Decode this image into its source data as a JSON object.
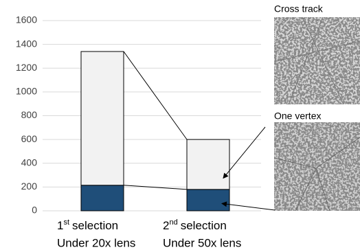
{
  "chart_data": {
    "type": "stacked_bar",
    "categories": [
      [
        "1",
        "st",
        "selection",
        "Under 20x lens"
      ],
      [
        "2",
        "nd",
        "selection",
        "Under 50x lens"
      ]
    ],
    "series": [
      {
        "color": "#1f4e79",
        "values": [
          215,
          180
        ]
      },
      {
        "color": "#f2f2f2",
        "values": [
          1125,
          420
        ]
      }
    ],
    "ylim": [
      0,
      1600
    ],
    "yticks": [
      0,
      200,
      400,
      600,
      800,
      1000,
      1200,
      1400,
      1600
    ],
    "grid": true,
    "images": [
      {
        "label": "Cross track"
      },
      {
        "label": "One vertex"
      }
    ]
  }
}
